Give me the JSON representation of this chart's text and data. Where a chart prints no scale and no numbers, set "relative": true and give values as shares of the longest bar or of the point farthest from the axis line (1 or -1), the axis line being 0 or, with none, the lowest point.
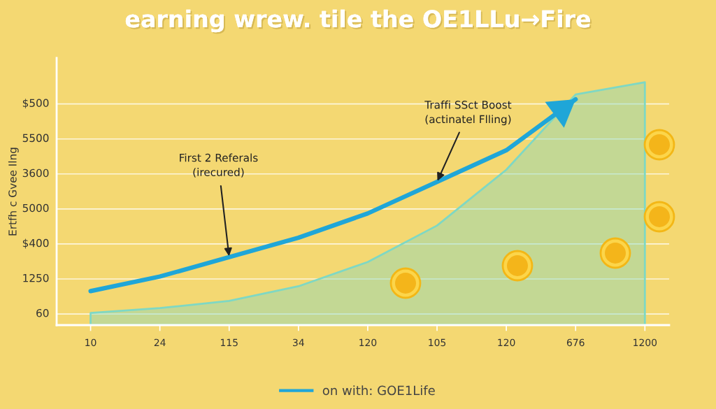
{
  "chart_data": {
    "type": "line",
    "title": "earning wrew. tile the OE1LLu→Fire",
    "ylabel": "Ertfh c Gvee Ilng",
    "relative": true,
    "categories": [
      "10",
      "24",
      "115",
      "34",
      "120",
      "105",
      "120",
      "676",
      "1200"
    ],
    "series": [
      {
        "type": "area",
        "color": "#7ed8c4",
        "values": [
          0.05,
          0.07,
          0.1,
          0.16,
          0.26,
          0.41,
          0.64,
          0.95,
          1
        ]
      },
      {
        "name": "on with: GOE1Life",
        "color": "#1fa6d8",
        "values": [
          0.14,
          0.2,
          0.28,
          0.36,
          0.46,
          0.59,
          0.72,
          0.93,
          null
        ]
      }
    ],
    "annotations": [
      {
        "text": "First 2 Referals\n(irecured)",
        "x": "115",
        "y": 0.28
      },
      {
        "text": "Traffi SSct Boost\n(actinatel Flling)",
        "x": "105",
        "y": 0.59
      },
      "$500",
      "5500",
      "3600",
      "5000",
      "$400",
      "1250",
      "60"
    ],
    "grid": "y",
    "legend": "bottom",
    "marker": "none",
    "line_style": "solid"
  }
}
